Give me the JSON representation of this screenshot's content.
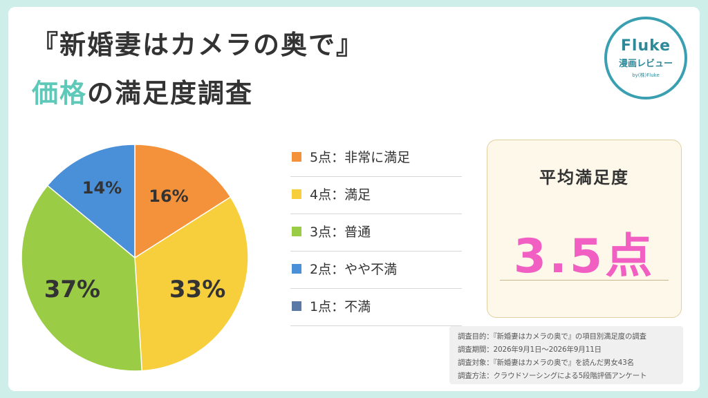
{
  "title": {
    "line1": "『新婚妻はカメラの奥で』",
    "line2_highlight": "価格",
    "line2_rest": "の満足度調査"
  },
  "logo": {
    "brand": "Fluke",
    "sub": "漫画レビュー",
    "by": "by(株)Fluke"
  },
  "chart_data": {
    "type": "pie",
    "categories": [
      "5点：非常に満足",
      "4点：満足",
      "3点：普通",
      "2点：やや不満",
      "1点：不満"
    ],
    "values": [
      16,
      33,
      37,
      14,
      0
    ],
    "labels": [
      "16%",
      "33%",
      "37%",
      "14%",
      ""
    ],
    "colors": [
      "#f4913b",
      "#f7cf3d",
      "#9bcc45",
      "#4a90d9",
      "#5b79a6"
    ]
  },
  "average": {
    "title": "平均満足度",
    "value": "3.5点"
  },
  "notes": [
    "調査目的：『新婚妻はカメラの奥で』の項目別満足度の調査",
    "調査期間：2026年9月1日～2026年9月11日",
    "調査対象：『新婚妻はカメラの奥で』を読んだ男女43名",
    "調査方法：クラウドソーシングによる5段階評価アンケート"
  ]
}
